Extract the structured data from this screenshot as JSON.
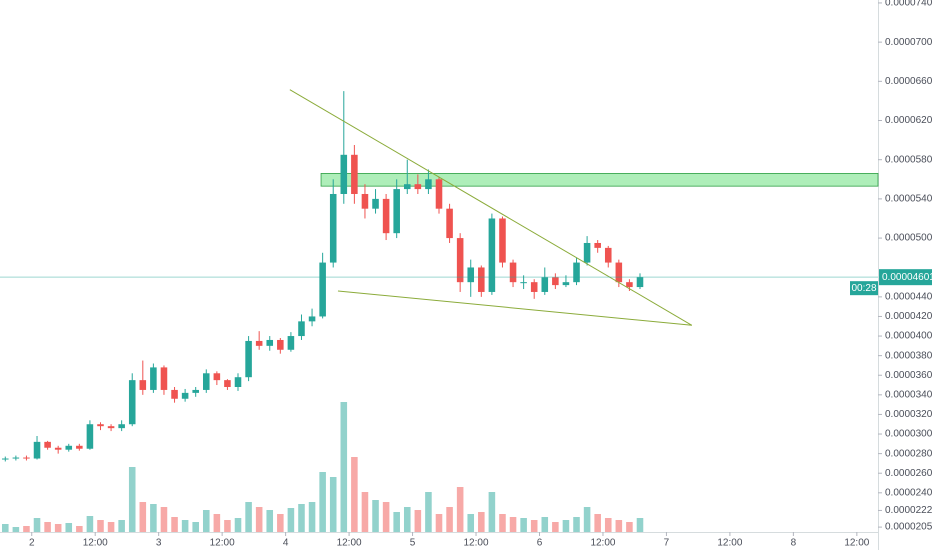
{
  "chart_data": {
    "type": "candlestick",
    "x": [
      1,
      3,
      5,
      7,
      9,
      11,
      13,
      15,
      17,
      19,
      21,
      23,
      25,
      27,
      29,
      31,
      33,
      35,
      37,
      39,
      41,
      43,
      45,
      47,
      49,
      51,
      53,
      55,
      57,
      59,
      61,
      63,
      65,
      67,
      69,
      71,
      73,
      75,
      77,
      79,
      81,
      83,
      85,
      87,
      89,
      91,
      93,
      95,
      97,
      99,
      101,
      103,
      105,
      107,
      109,
      111,
      113,
      115,
      117,
      119,
      121
    ],
    "open": [
      2.74e-05,
      2.75e-05,
      2.76e-05,
      2.75e-05,
      2.92e-05,
      2.86e-05,
      2.84e-05,
      2.88e-05,
      2.85e-05,
      3.1e-05,
      3.08e-05,
      3.06e-05,
      3.1e-05,
      3.55e-05,
      3.45e-05,
      3.68e-05,
      3.45e-05,
      3.36e-05,
      3.42e-05,
      3.45e-05,
      3.62e-05,
      3.55e-05,
      3.48e-05,
      3.58e-05,
      3.95e-05,
      3.9e-05,
      3.96e-05,
      3.86e-05,
      4e-05,
      4.15e-05,
      4.2e-05,
      4.75e-05,
      5.45e-05,
      5.85e-05,
      5.45e-05,
      5.3e-05,
      5.4e-05,
      5.05e-05,
      5.5e-05,
      5.55e-05,
      5.5e-05,
      5.6e-05,
      5.3e-05,
      5e-05,
      4.55e-05,
      4.7e-05,
      4.45e-05,
      5.2e-05,
      4.75e-05,
      4.55e-05,
      4.55e-05,
      4.45e-05,
      4.6e-05,
      4.52e-05,
      4.55e-05,
      4.75e-05,
      4.95e-05,
      4.9e-05,
      4.75e-05,
      4.55e-05,
      4.5e-05
    ],
    "high": [
      2.77e-05,
      2.78e-05,
      2.78e-05,
      2.98e-05,
      2.93e-05,
      2.88e-05,
      2.9e-05,
      2.9e-05,
      3.14e-05,
      3.12e-05,
      3.1e-05,
      3.14e-05,
      3.62e-05,
      3.75e-05,
      3.72e-05,
      3.7e-05,
      3.48e-05,
      3.46e-05,
      3.48e-05,
      3.66e-05,
      3.64e-05,
      3.56e-05,
      3.62e-05,
      4e-05,
      4.05e-05,
      4e-05,
      3.98e-05,
      4.04e-05,
      4.22e-05,
      4.28e-05,
      4.85e-05,
      5.6e-05,
      6.5e-05,
      5.95e-05,
      5.55e-05,
      5.5e-05,
      5.45e-05,
      5.6e-05,
      5.8e-05,
      5.65e-05,
      5.7e-05,
      5.62e-05,
      5.35e-05,
      5.05e-05,
      4.78e-05,
      4.72e-05,
      5.25e-05,
      5.22e-05,
      4.78e-05,
      4.62e-05,
      4.58e-05,
      4.7e-05,
      4.64e-05,
      4.62e-05,
      4.8e-05,
      5.02e-05,
      4.98e-05,
      4.92e-05,
      4.78e-05,
      4.58e-05,
      4.64e-05
    ],
    "low": [
      2.72e-05,
      2.73e-05,
      2.73e-05,
      2.74e-05,
      2.84e-05,
      2.8e-05,
      2.82e-05,
      2.83e-05,
      2.84e-05,
      3.04e-05,
      3.03e-05,
      3.03e-05,
      3.08e-05,
      3.4e-05,
      3.42e-05,
      3.4e-05,
      3.32e-05,
      3.33e-05,
      3.38e-05,
      3.42e-05,
      3.5e-05,
      3.45e-05,
      3.44e-05,
      3.54e-05,
      3.86e-05,
      3.85e-05,
      3.82e-05,
      3.84e-05,
      3.96e-05,
      4.1e-05,
      4.18e-05,
      4.7e-05,
      5.35e-05,
      5.35e-05,
      5.2e-05,
      5.25e-05,
      4.98e-05,
      5e-05,
      5.45e-05,
      5.45e-05,
      5.45e-05,
      5.25e-05,
      4.95e-05,
      4.45e-05,
      4.4e-05,
      4.4e-05,
      4.42e-05,
      4.7e-05,
      4.5e-05,
      4.48e-05,
      4.38e-05,
      4.42e-05,
      4.48e-05,
      4.5e-05,
      4.52e-05,
      4.72e-05,
      4.85e-05,
      4.7e-05,
      4.5e-05,
      4.46e-05,
      4.48e-05
    ],
    "close": [
      2.75e-05,
      2.76e-05,
      2.75e-05,
      2.92e-05,
      2.86e-05,
      2.84e-05,
      2.88e-05,
      2.85e-05,
      3.1e-05,
      3.08e-05,
      3.06e-05,
      3.1e-05,
      3.55e-05,
      3.45e-05,
      3.68e-05,
      3.45e-05,
      3.36e-05,
      3.42e-05,
      3.45e-05,
      3.62e-05,
      3.55e-05,
      3.48e-05,
      3.58e-05,
      3.95e-05,
      3.9e-05,
      3.96e-05,
      3.86e-05,
      4e-05,
      4.15e-05,
      4.2e-05,
      4.75e-05,
      5.45e-05,
      5.85e-05,
      5.45e-05,
      5.3e-05,
      5.4e-05,
      5.05e-05,
      5.5e-05,
      5.55e-05,
      5.5e-05,
      5.6e-05,
      5.3e-05,
      5e-05,
      4.55e-05,
      4.7e-05,
      4.45e-05,
      5.2e-05,
      4.75e-05,
      4.55e-05,
      4.55e-05,
      4.45e-05,
      4.6e-05,
      4.52e-05,
      4.55e-05,
      4.75e-05,
      4.95e-05,
      4.9e-05,
      4.75e-05,
      4.55e-05,
      4.5e-05,
      4.601e-05
    ],
    "volume": [
      8,
      5,
      6,
      14,
      10,
      8,
      9,
      6,
      16,
      12,
      10,
      12,
      65,
      30,
      28,
      25,
      15,
      12,
      10,
      22,
      18,
      12,
      14,
      30,
      25,
      22,
      18,
      24,
      28,
      30,
      60,
      55,
      130,
      75,
      40,
      32,
      30,
      20,
      25,
      22,
      40,
      18,
      25,
      45,
      18,
      20,
      40,
      18,
      15,
      14,
      12,
      15,
      10,
      12,
      15,
      25,
      18,
      14,
      12,
      10,
      14
    ],
    "up_color": "#26a69a",
    "down_color": "#ef5350",
    "xlim": [
      0,
      166
    ],
    "xticks": [
      {
        "value": 6,
        "label": "2"
      },
      {
        "value": 18,
        "label": "12:00"
      },
      {
        "value": 30,
        "label": "3"
      },
      {
        "value": 42,
        "label": "12:00"
      },
      {
        "value": 54,
        "label": "4"
      },
      {
        "value": 66,
        "label": "12:00"
      },
      {
        "value": 78,
        "label": "5"
      },
      {
        "value": 90,
        "label": "12:00"
      },
      {
        "value": 102,
        "label": "6"
      },
      {
        "value": 114,
        "label": "12:00"
      },
      {
        "value": 126,
        "label": "7"
      },
      {
        "value": 138,
        "label": "12:00"
      },
      {
        "value": 150,
        "label": "8"
      },
      {
        "value": 162,
        "label": "12:00"
      }
    ],
    "ylim": [
      2e-05,
      7.43e-05
    ],
    "yticks": [
      {
        "value": 7.4e-05,
        "label": "0.00007400"
      },
      {
        "value": 7e-05,
        "label": "0.00007000"
      },
      {
        "value": 6.6e-05,
        "label": "0.00006600"
      },
      {
        "value": 6.2e-05,
        "label": "0.00006200"
      },
      {
        "value": 5.8e-05,
        "label": "0.00005800"
      },
      {
        "value": 5.4e-05,
        "label": "0.00005400"
      },
      {
        "value": 5e-05,
        "label": "0.00005000"
      },
      {
        "value": 4.4e-05,
        "label": "0.00004400"
      },
      {
        "value": 4.2e-05,
        "label": "0.00004200"
      },
      {
        "value": 4e-05,
        "label": "0.00004000"
      },
      {
        "value": 3.8e-05,
        "label": "0.00003800"
      },
      {
        "value": 3.6e-05,
        "label": "0.00003600"
      },
      {
        "value": 3.4e-05,
        "label": "0.00003400"
      },
      {
        "value": 3.2e-05,
        "label": "0.00003200"
      },
      {
        "value": 3e-05,
        "label": "0.00003000"
      },
      {
        "value": 2.8e-05,
        "label": "0.00002800"
      },
      {
        "value": 2.6e-05,
        "label": "0.00002600"
      },
      {
        "value": 2.4e-05,
        "label": "0.00002400"
      },
      {
        "value": 2.22e-05,
        "label": "0.00002220"
      },
      {
        "value": 2.05e-05,
        "label": "0.00002050"
      }
    ],
    "last_price": {
      "value": 4.601e-05,
      "label": "0.00004601"
    },
    "countdown": "00:28",
    "zone": {
      "x": [
        60.7,
        166
      ],
      "y": [
        5.53e-05,
        5.66e-05
      ]
    },
    "trendlines": [
      {
        "x": [
          54.8,
          130.8
        ],
        "y": [
          6.515e-05,
          4.11e-05
        ]
      },
      {
        "x": [
          63.9,
          130.8
        ],
        "y": [
          4.46e-05,
          4.11e-05
        ]
      }
    ]
  }
}
